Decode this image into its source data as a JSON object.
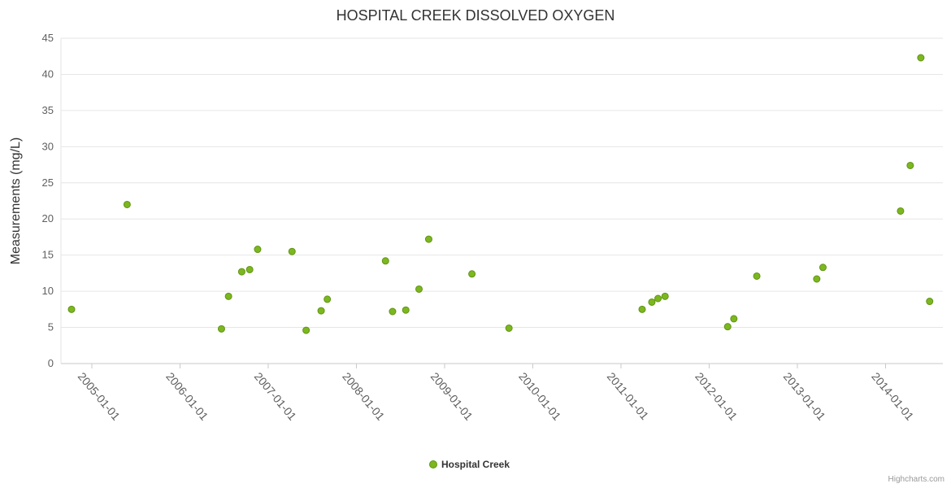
{
  "title": "HOSPITAL CREEK DISSOLVED OXYGEN",
  "y_axis_title": "Measurements (mg/L)",
  "legend": {
    "label": "Hospital Creek"
  },
  "credits": "Highcharts.com",
  "colors": {
    "point": "#7db71f",
    "point_stroke": "#5f9414",
    "grid": "#e6e6e6",
    "axis_line": "#c9c9c9",
    "tick_text": "#606060",
    "title_text": "#333333"
  },
  "chart_data": {
    "type": "scatter",
    "title": "HOSPITAL CREEK DISSOLVED OXYGEN",
    "xlabel": "",
    "ylabel": "Measurements (mg/L)",
    "ylim": [
      0,
      45
    ],
    "xlim": [
      2004.65,
      2014.65
    ],
    "y_ticks": [
      0,
      5,
      10,
      15,
      20,
      25,
      30,
      35,
      40,
      45
    ],
    "x_ticks": [
      {
        "x": 2005,
        "label": "2005-01-01"
      },
      {
        "x": 2006,
        "label": "2006-01-01"
      },
      {
        "x": 2007,
        "label": "2007-01-01"
      },
      {
        "x": 2008,
        "label": "2008-01-01"
      },
      {
        "x": 2009,
        "label": "2009-01-01"
      },
      {
        "x": 2010,
        "label": "2010-01-01"
      },
      {
        "x": 2011,
        "label": "2011-01-01"
      },
      {
        "x": 2012,
        "label": "2012-01-01"
      },
      {
        "x": 2013,
        "label": "2013-01-01"
      },
      {
        "x": 2014,
        "label": "2014-01-01"
      }
    ],
    "grid": "horizontal",
    "legend_position": "bottom",
    "series": [
      {
        "name": "Hospital Creek",
        "points": [
          [
            2004.77,
            7.5
          ],
          [
            2005.4,
            22.0
          ],
          [
            2006.47,
            4.8
          ],
          [
            2006.55,
            9.3
          ],
          [
            2006.7,
            12.7
          ],
          [
            2006.79,
            13.0
          ],
          [
            2006.88,
            15.8
          ],
          [
            2007.27,
            15.5
          ],
          [
            2007.43,
            4.6
          ],
          [
            2007.6,
            7.3
          ],
          [
            2007.67,
            8.9
          ],
          [
            2008.33,
            14.2
          ],
          [
            2008.41,
            7.2
          ],
          [
            2008.56,
            7.4
          ],
          [
            2008.71,
            10.3
          ],
          [
            2008.82,
            17.2
          ],
          [
            2009.31,
            12.4
          ],
          [
            2009.73,
            4.9
          ],
          [
            2011.24,
            7.5
          ],
          [
            2011.35,
            8.5
          ],
          [
            2011.42,
            9.0
          ],
          [
            2011.5,
            9.3
          ],
          [
            2012.21,
            5.1
          ],
          [
            2012.28,
            6.2
          ],
          [
            2012.54,
            12.1
          ],
          [
            2013.22,
            11.7
          ],
          [
            2013.29,
            13.3
          ],
          [
            2014.17,
            21.1
          ],
          [
            2014.28,
            27.4
          ],
          [
            2014.4,
            42.3
          ],
          [
            2014.5,
            8.6
          ]
        ]
      }
    ]
  }
}
